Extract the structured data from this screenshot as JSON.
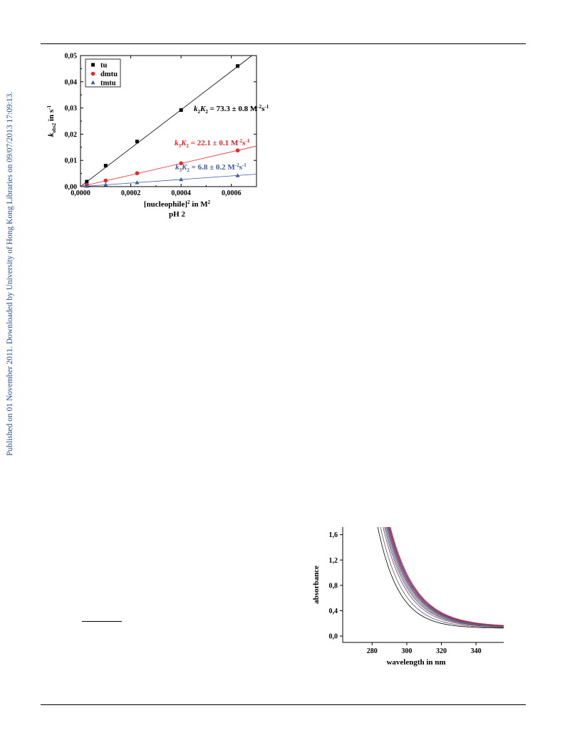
{
  "sidebar_text": "Published on 01 November 2011. Downloaded by University of Hong Kong Libraries on 09/07/2013 17:09:13.",
  "colors": {
    "tu": "#000000",
    "dmtu": "#e8262a",
    "tmtu": "#3b5aa8",
    "sidebar": "#2c4a9a"
  },
  "chart_data": [
    {
      "type": "scatter",
      "title": "",
      "caption": "pH 2",
      "xlabel_main": "[nucleophile]",
      "xlabel_sup": "2",
      "xlabel_tail": " in M",
      "xlabel_tail_sup": "2",
      "ylabel_main": "k",
      "ylabel_sub": "obs2",
      "ylabel_tail": " in s",
      "ylabel_sup": "-1",
      "xlim": [
        0,
        0.0007
      ],
      "ylim": [
        0,
        0.05
      ],
      "x_ticks": [
        0.0,
        0.0002,
        0.0004,
        0.0006
      ],
      "x_tick_labels": [
        "0,0000",
        "0,0002",
        "0,0004",
        "0,0006"
      ],
      "y_ticks": [
        0.0,
        0.01,
        0.02,
        0.03,
        0.04,
        0.05
      ],
      "y_tick_labels": [
        "0,00",
        "0,01",
        "0,02",
        "0,03",
        "0,04",
        "0,05"
      ],
      "legend_position": "top-left",
      "series": [
        {
          "name": "tu",
          "marker": "square",
          "color": "#000000",
          "x": [
            2.5e-05,
            0.0001,
            0.000225,
            0.0004,
            0.000625
          ],
          "y": [
            0.0019,
            0.008,
            0.0172,
            0.0292,
            0.046
          ],
          "fit_slope": 73.3,
          "fit_intercept": 0.0,
          "annotation": {
            "k": "k",
            "k_sub": "2",
            "K": "K",
            "K_sub": "2",
            "value": " = 73.3 ± 0.8 M",
            "unit_sup1": "-2",
            "unit_s": "s",
            "unit_sup2": "-1"
          }
        },
        {
          "name": "dmtu",
          "marker": "circle",
          "color": "#e8262a",
          "x": [
            2.5e-05,
            0.0001,
            0.000225,
            0.0004,
            0.000625
          ],
          "y": [
            0.0007,
            0.0023,
            0.0051,
            0.0089,
            0.0138
          ],
          "fit_slope": 22.1,
          "fit_intercept": 0.0,
          "annotation": {
            "k": "k",
            "k_sub": "3",
            "K": "K",
            "K_sub": "2",
            "value": " = 22.1 ± 0.1 M",
            "unit_sup1": "-2",
            "unit_s": "s",
            "unit_sup2": "-1"
          }
        },
        {
          "name": "tmtu",
          "marker": "triangle",
          "color": "#3b5aa8",
          "x": [
            2.5e-05,
            0.0001,
            0.000225,
            0.0004,
            0.000625
          ],
          "y": [
            0.0002,
            0.0007,
            0.0015,
            0.0027,
            0.0042
          ],
          "fit_slope": 6.8,
          "fit_intercept": 0.0,
          "annotation": {
            "k": "k",
            "k_sub": "3",
            "K": "K",
            "K_sub": "2",
            "value": " = 6.8 ± 0.2 M",
            "unit_sup1": "-2",
            "unit_s": "s",
            "unit_sup2": "-1"
          }
        }
      ]
    },
    {
      "type": "line",
      "title": "",
      "xlabel": "wavelength in nm",
      "ylabel": "absorbance",
      "xlim": [
        263,
        356
      ],
      "ylim": [
        -0.1,
        1.72
      ],
      "x_ticks": [
        280,
        300,
        320,
        340
      ],
      "x_tick_labels": [
        "280",
        "300",
        "320",
        "340"
      ],
      "y_ticks": [
        0.0,
        0.4,
        0.8,
        1.2,
        1.6
      ],
      "y_tick_labels": [
        "0,0",
        "0,4",
        "0,8",
        "1,2",
        "1,6"
      ],
      "grid": false,
      "spectra": {
        "wavelength_start": 265,
        "wavelength_end": 356,
        "curves": [
          {
            "color": "#000000",
            "a": 1.48,
            "b": 0.122,
            "decay": 0.082
          },
          {
            "color": "#5a5a5a",
            "a": 1.58,
            "b": 0.13,
            "decay": 0.078
          },
          {
            "color": "#8b2b6b",
            "a": 1.66,
            "b": 0.135,
            "decay": 0.074
          },
          {
            "color": "#3b5aa8",
            "a": 1.7,
            "b": 0.138,
            "decay": 0.072
          },
          {
            "color": "#2e8b57",
            "a": 1.73,
            "b": 0.14,
            "decay": 0.071
          },
          {
            "color": "#c23b3b",
            "a": 1.76,
            "b": 0.142,
            "decay": 0.07
          },
          {
            "color": "#7a3fa0",
            "a": 1.78,
            "b": 0.143,
            "decay": 0.069
          },
          {
            "color": "#1f6fb0",
            "a": 1.8,
            "b": 0.144,
            "decay": 0.0685
          },
          {
            "color": "#d23c6e",
            "a": 1.82,
            "b": 0.146,
            "decay": 0.068
          },
          {
            "color": "#444444",
            "a": 1.84,
            "b": 0.147,
            "decay": 0.0675
          },
          {
            "color": "#b3307a",
            "a": 1.86,
            "b": 0.148,
            "decay": 0.067
          },
          {
            "color": "#3a3a8a",
            "a": 1.88,
            "b": 0.149,
            "decay": 0.0665
          },
          {
            "color": "#e0483c",
            "a": 1.9,
            "b": 0.15,
            "decay": 0.066
          }
        ]
      }
    }
  ]
}
